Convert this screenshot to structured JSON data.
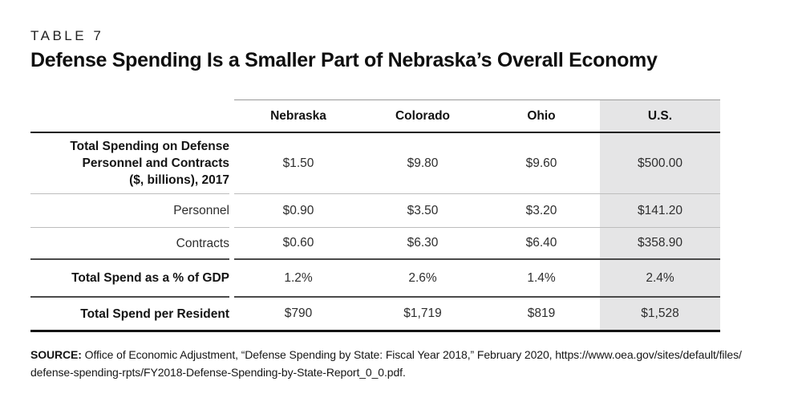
{
  "page": {
    "kicker": "TABLE 7",
    "title": "Defense Spending Is a Smaller Part of Nebraska’s Overall Economy"
  },
  "table": {
    "columns": [
      "Nebraska",
      "Colorado",
      "Ohio",
      "U.S."
    ],
    "highlighted_column": "U.S.",
    "highlight_color": "#e5e5e6",
    "rows": [
      {
        "label": "Total Spending on Defense Personnel and Contracts ($, billions), 2017",
        "label_lines": [
          "Total Spending on Defense",
          "Personnel and Contracts",
          "($, billions), 2017"
        ],
        "emphasis": true,
        "values": [
          "$1.50",
          "$9.80",
          "$9.60",
          "$500.00"
        ]
      },
      {
        "label": "Personnel",
        "emphasis": false,
        "values": [
          "$0.90",
          "$3.50",
          "$3.20",
          "$141.20"
        ]
      },
      {
        "label": "Contracts",
        "emphasis": false,
        "values": [
          "$0.60",
          "$6.30",
          "$6.40",
          "$358.90"
        ]
      },
      {
        "label": "Total Spend as a % of GDP",
        "emphasis": true,
        "values": [
          "1.2%",
          "2.6%",
          "1.4%",
          "2.4%"
        ]
      },
      {
        "label": "Total Spend per Resident",
        "emphasis": true,
        "values": [
          "$790",
          "$1,719",
          "$819",
          "$1,528"
        ]
      }
    ]
  },
  "source": {
    "label": "SOURCE:",
    "lines": [
      "Office of Economic Adjustment, “Defense Spending by State: Fiscal Year 2018,” February 2020, https://www.oea.gov/sites/default/files/",
      "defense-spending-rpts/FY2018-Defense-Spending-by-State-Report_0_0.pdf."
    ]
  }
}
